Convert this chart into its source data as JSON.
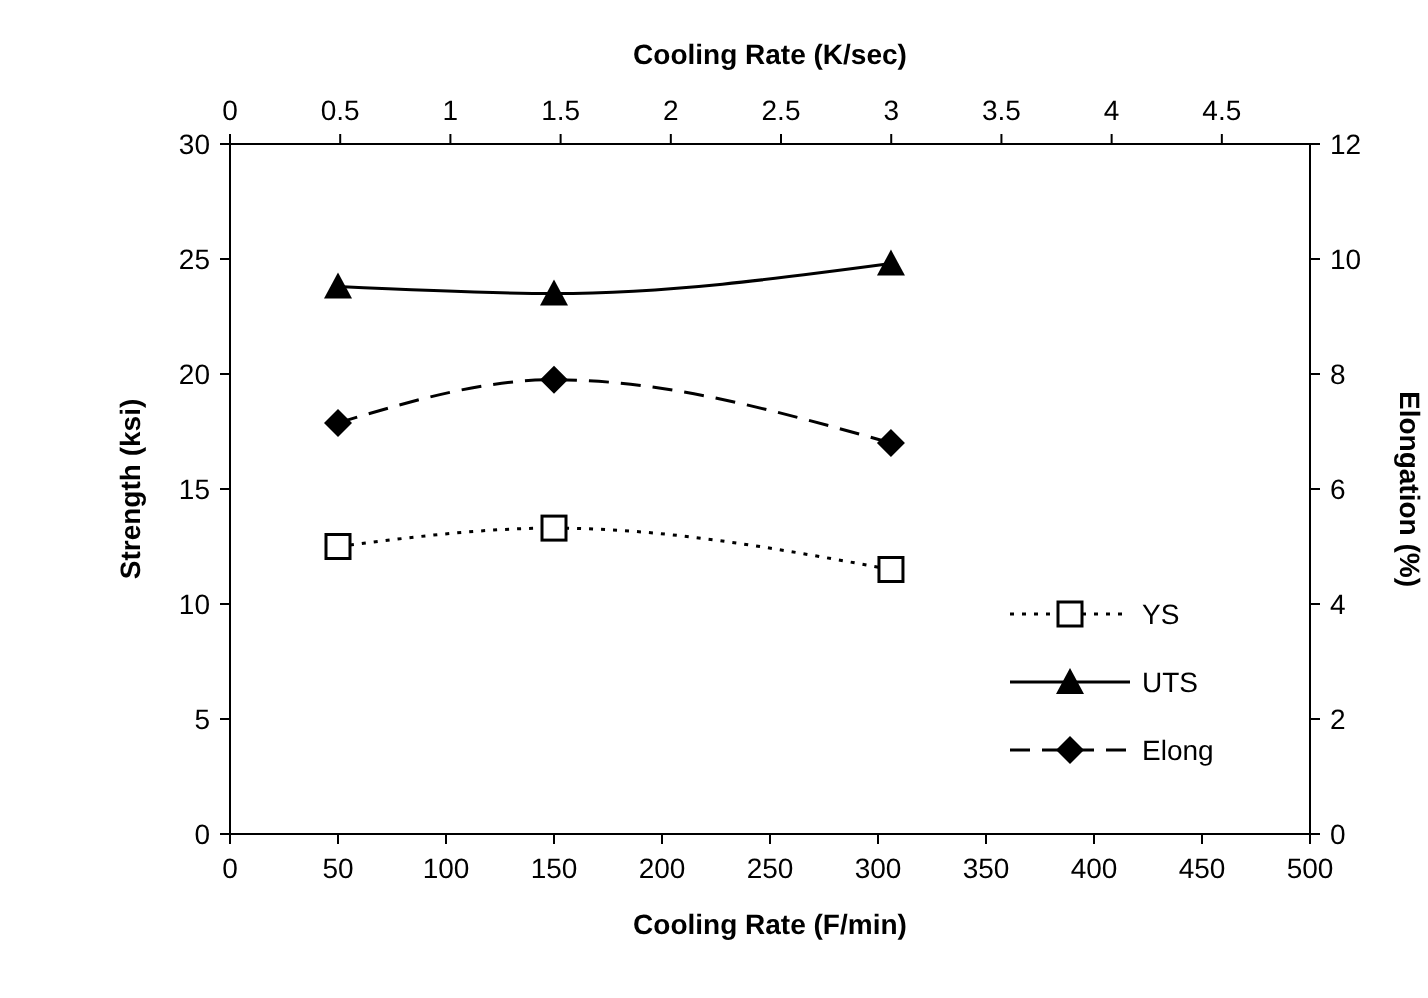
{
  "chart_data": {
    "type": "line",
    "xlabel": "Cooling Rate (F/min)",
    "x2label": "Cooling Rate (K/sec)",
    "ylabel": "Strength (ksi)",
    "y2label": "Elongation (%)",
    "x": [
      50,
      150,
      306
    ],
    "xlim": [
      0,
      500
    ],
    "xticks": [
      0,
      50,
      100,
      150,
      200,
      250,
      300,
      350,
      400,
      450,
      500
    ],
    "x2lim": [
      0,
      4.9
    ],
    "x2ticks": [
      0,
      0.5,
      1,
      1.5,
      2,
      2.5,
      3,
      3.5,
      4,
      4.5
    ],
    "ylim": [
      0,
      30
    ],
    "yticks": [
      0,
      5,
      10,
      15,
      20,
      25,
      30
    ],
    "y2lim": [
      0,
      12
    ],
    "y2ticks": [
      0,
      2,
      4,
      6,
      8,
      10,
      12
    ],
    "legend": "bottom right",
    "grid": false,
    "series": [
      {
        "name": "YS",
        "color": "#000000",
        "values": [
          12.5,
          13.3,
          11.5
        ],
        "marker": "square",
        "line_style": "dotted"
      },
      {
        "name": "UTS",
        "color": "#000000",
        "values": [
          23.8,
          23.5,
          24.8
        ],
        "marker": "triangle",
        "line_style": "solid"
      },
      {
        "name": "Elong",
        "color": "#000000",
        "values": [
          7.15,
          7.9,
          6.8
        ],
        "marker": "diamond",
        "line_style": "dashed",
        "axis": "y2"
      }
    ]
  }
}
